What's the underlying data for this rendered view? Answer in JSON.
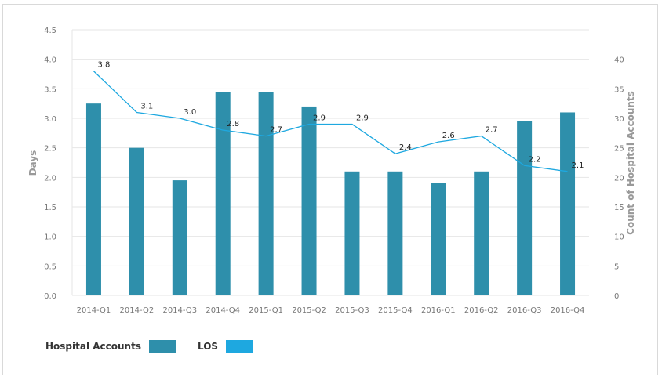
{
  "chart_data": {
    "type": "bar",
    "categories": [
      "2014-Q1",
      "2014-Q2",
      "2014-Q3",
      "2014-Q4",
      "2015-Q1",
      "2015-Q2",
      "2015-Q3",
      "2015-Q4",
      "2016-Q1",
      "2016-Q2",
      "2016-Q3",
      "2016-Q4"
    ],
    "series": [
      {
        "name": "Hospital Accounts",
        "type": "bar",
        "axis": "right",
        "color": "#2e8fab",
        "values": [
          32.5,
          25,
          19.5,
          34.5,
          34.5,
          32,
          21,
          21,
          19,
          21,
          29.5,
          31
        ]
      },
      {
        "name": "LOS",
        "type": "line",
        "axis": "left",
        "color": "#1ea8e0",
        "values": [
          3.8,
          3.1,
          3.0,
          2.8,
          2.7,
          2.9,
          2.9,
          2.4,
          2.6,
          2.7,
          2.2,
          2.1
        ],
        "labels": [
          "3.8",
          "3.1",
          "3.0",
          "2.8",
          "2.7",
          "2.9",
          "2.9",
          "2.4",
          "2.6",
          "2.7",
          "2.2",
          "2.1"
        ]
      }
    ],
    "ylabel": "Days",
    "ylabel_right": "Count of Hospital Accounts",
    "ylim": [
      0,
      4.5
    ],
    "ylim_right": [
      0,
      45
    ],
    "yticks": [
      "0.0",
      "0.5",
      "1.0",
      "1.5",
      "2.0",
      "2.5",
      "3.0",
      "3.5",
      "4.0",
      "4.5"
    ],
    "yticks_right": [
      "0",
      "5",
      "10",
      "15",
      "20",
      "25",
      "30",
      "35",
      "40"
    ],
    "grid": true,
    "legend": "bottom-left"
  }
}
